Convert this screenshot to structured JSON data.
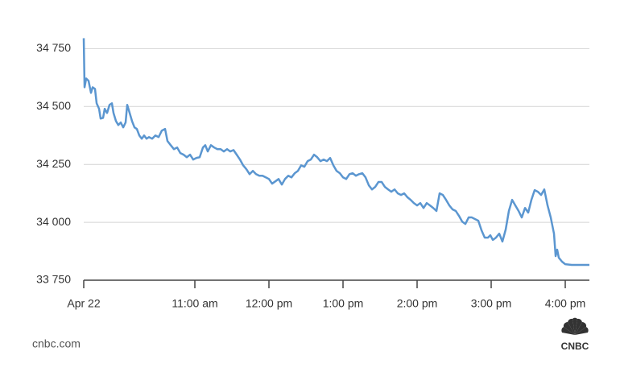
{
  "chart_data": {
    "type": "line",
    "source": "cnbc.com",
    "brand": "CNBC",
    "color": "#5b96d0",
    "grid": true,
    "xlim": [
      9.5,
      16.326
    ],
    "ylim": [
      33750,
      34800
    ],
    "xticks": [
      {
        "value": 9.5,
        "label": "Apr 22"
      },
      {
        "value": 11,
        "label": "11:00 am"
      },
      {
        "value": 12,
        "label": "12:00 pm"
      },
      {
        "value": 13,
        "label": "1:00 pm"
      },
      {
        "value": 14,
        "label": "2:00 pm"
      },
      {
        "value": 15,
        "label": "3:00 pm"
      },
      {
        "value": 16,
        "label": "4:00 pm"
      }
    ],
    "yticks": [
      {
        "value": 33750,
        "label": "33 750"
      },
      {
        "value": 34000,
        "label": "34 000"
      },
      {
        "value": 34250,
        "label": "34 250"
      },
      {
        "value": 34500,
        "label": "34 500"
      },
      {
        "value": 34750,
        "label": "34 750"
      }
    ],
    "x": [
      9.5,
      9.511,
      9.533,
      9.565,
      9.598,
      9.62,
      9.652,
      9.674,
      9.707,
      9.728,
      9.761,
      9.783,
      9.815,
      9.848,
      9.88,
      9.902,
      9.935,
      9.967,
      10.0,
      10.033,
      10.065,
      10.087,
      10.12,
      10.152,
      10.185,
      10.217,
      10.25,
      10.283,
      10.315,
      10.348,
      10.38,
      10.424,
      10.467,
      10.511,
      10.554,
      10.598,
      10.63,
      10.674,
      10.717,
      10.761,
      10.804,
      10.848,
      10.891,
      10.935,
      10.978,
      11.022,
      11.065,
      11.109,
      11.141,
      11.174,
      11.217,
      11.261,
      11.304,
      11.348,
      11.391,
      11.435,
      11.478,
      11.522,
      11.565,
      11.609,
      11.652,
      11.696,
      11.739,
      11.783,
      11.826,
      11.87,
      11.913,
      11.957,
      12.0,
      12.043,
      12.087,
      12.13,
      12.174,
      12.217,
      12.261,
      12.304,
      12.348,
      12.391,
      12.435,
      12.478,
      12.522,
      12.565,
      12.609,
      12.652,
      12.696,
      12.739,
      12.783,
      12.826,
      12.87,
      12.913,
      12.957,
      13.0,
      13.043,
      13.087,
      13.13,
      13.174,
      13.217,
      13.261,
      13.304,
      13.348,
      13.391,
      13.435,
      13.478,
      13.522,
      13.565,
      13.609,
      13.652,
      13.696,
      13.739,
      13.783,
      13.826,
      13.87,
      13.913,
      13.957,
      14.0,
      14.043,
      14.087,
      14.13,
      14.174,
      14.217,
      14.261,
      14.304,
      14.348,
      14.391,
      14.435,
      14.478,
      14.522,
      14.565,
      14.609,
      14.652,
      14.696,
      14.739,
      14.783,
      14.826,
      14.87,
      14.913,
      14.957,
      14.989,
      15.022,
      15.065,
      15.109,
      15.152,
      15.196,
      15.239,
      15.283,
      15.326,
      15.37,
      15.413,
      15.457,
      15.5,
      15.543,
      15.587,
      15.63,
      15.674,
      15.717,
      15.761,
      15.804,
      15.848,
      15.87,
      15.891,
      15.913,
      15.957,
      16.0,
      16.087,
      16.196,
      16.326
    ],
    "values": [
      34795,
      34583,
      34621,
      34611,
      34559,
      34583,
      34576,
      34514,
      34490,
      34448,
      34451,
      34490,
      34472,
      34507,
      34514,
      34472,
      34437,
      34420,
      34431,
      34410,
      34431,
      34507,
      34472,
      34437,
      34410,
      34403,
      34375,
      34361,
      34375,
      34361,
      34368,
      34361,
      34375,
      34368,
      34396,
      34403,
      34351,
      34333,
      34316,
      34323,
      34299,
      34292,
      34281,
      34292,
      34271,
      34278,
      34281,
      34323,
      34333,
      34306,
      34333,
      34323,
      34316,
      34316,
      34306,
      34316,
      34306,
      34312,
      34292,
      34271,
      34246,
      34229,
      34208,
      34222,
      34208,
      34201,
      34201,
      34194,
      34187,
      34167,
      34177,
      34187,
      34163,
      34187,
      34201,
      34194,
      34212,
      34222,
      34246,
      34240,
      34264,
      34271,
      34292,
      34281,
      34264,
      34271,
      34264,
      34278,
      34246,
      34222,
      34212,
      34194,
      34187,
      34208,
      34212,
      34201,
      34208,
      34212,
      34194,
      34160,
      34142,
      34153,
      34174,
      34174,
      34153,
      34142,
      34132,
      34142,
      34125,
      34118,
      34125,
      34108,
      34097,
      34083,
      34073,
      34083,
      34062,
      34083,
      34073,
      34062,
      34049,
      34125,
      34118,
      34097,
      34073,
      34056,
      34049,
      34028,
      34003,
      33993,
      34021,
      34021,
      34014,
      34007,
      33965,
      33934,
      33934,
      33944,
      33924,
      33934,
      33951,
      33917,
      33969,
      34049,
      34097,
      34073,
      34049,
      34021,
      34062,
      34042,
      34097,
      34139,
      34132,
      34118,
      34142,
      34073,
      34021,
      33951,
      33854,
      33882,
      33847,
      33830,
      33819,
      33816,
      33816,
      33816
    ]
  }
}
